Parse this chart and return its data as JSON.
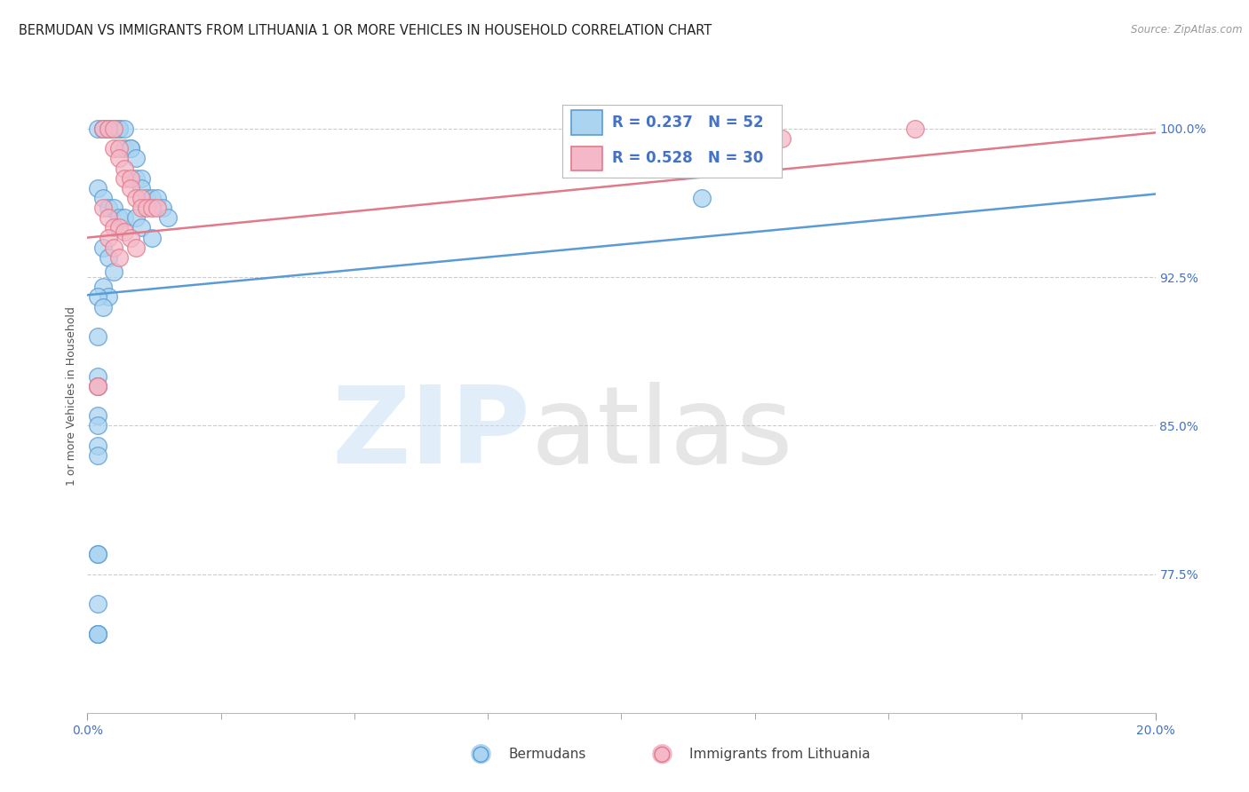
{
  "title": "BERMUDAN VS IMMIGRANTS FROM LITHUANIA 1 OR MORE VEHICLES IN HOUSEHOLD CORRELATION CHART",
  "source": "Source: ZipAtlas.com",
  "ylabel": "1 or more Vehicles in Household",
  "ytick_vals": [
    0.775,
    0.85,
    0.925,
    1.0
  ],
  "ytick_labels": [
    "77.5%",
    "85.0%",
    "92.5%",
    "100.0%"
  ],
  "xtick_left": "0.0%",
  "xtick_right": "20.0%",
  "xlim": [
    0.0,
    0.2
  ],
  "ylim": [
    0.705,
    1.025
  ],
  "blue_scatter_x": [
    0.002,
    0.003,
    0.003,
    0.004,
    0.004,
    0.005,
    0.005,
    0.006,
    0.006,
    0.007,
    0.007,
    0.008,
    0.008,
    0.009,
    0.009,
    0.01,
    0.01,
    0.011,
    0.012,
    0.013,
    0.014,
    0.015,
    0.002,
    0.003,
    0.004,
    0.005,
    0.006,
    0.007,
    0.009,
    0.01,
    0.012,
    0.003,
    0.004,
    0.005,
    0.003,
    0.004,
    0.002,
    0.003,
    0.002,
    0.002,
    0.002,
    0.002,
    0.002,
    0.002,
    0.002,
    0.115,
    0.002,
    0.002,
    0.002,
    0.002,
    0.002,
    0.002
  ],
  "blue_scatter_y": [
    1.0,
    1.0,
    1.0,
    1.0,
    1.0,
    1.0,
    1.0,
    1.0,
    1.0,
    1.0,
    0.99,
    0.99,
    0.99,
    0.985,
    0.975,
    0.975,
    0.97,
    0.965,
    0.965,
    0.965,
    0.96,
    0.955,
    0.97,
    0.965,
    0.96,
    0.96,
    0.955,
    0.955,
    0.955,
    0.95,
    0.945,
    0.94,
    0.935,
    0.928,
    0.92,
    0.915,
    0.915,
    0.91,
    0.895,
    0.875,
    0.87,
    0.855,
    0.85,
    0.84,
    0.835,
    0.965,
    0.785,
    0.785,
    0.76,
    0.745,
    0.745,
    0.745
  ],
  "pink_scatter_x": [
    0.003,
    0.004,
    0.005,
    0.005,
    0.006,
    0.006,
    0.007,
    0.007,
    0.008,
    0.008,
    0.009,
    0.01,
    0.01,
    0.011,
    0.012,
    0.013,
    0.003,
    0.004,
    0.005,
    0.006,
    0.007,
    0.008,
    0.009,
    0.004,
    0.005,
    0.006,
    0.002,
    0.13,
    0.155,
    0.002
  ],
  "pink_scatter_y": [
    1.0,
    1.0,
    1.0,
    0.99,
    0.99,
    0.985,
    0.98,
    0.975,
    0.975,
    0.97,
    0.965,
    0.965,
    0.96,
    0.96,
    0.96,
    0.96,
    0.96,
    0.955,
    0.95,
    0.95,
    0.948,
    0.945,
    0.94,
    0.945,
    0.94,
    0.935,
    0.87,
    0.995,
    1.0,
    0.87
  ],
  "blue_line_x": [
    0.0,
    0.2
  ],
  "blue_line_y": [
    0.916,
    0.967
  ],
  "pink_line_x": [
    0.0,
    0.2
  ],
  "pink_line_y": [
    0.945,
    0.998
  ],
  "blue_color": "#5b9bd5",
  "pink_color": "#e07a8a",
  "blue_fill": "#aad4f0",
  "pink_fill": "#f5b8c8",
  "grid_color": "#cccccc",
  "ytick_color": "#4472c4",
  "R_blue": "0.237",
  "N_blue": "52",
  "R_pink": "0.528",
  "N_pink": "30"
}
